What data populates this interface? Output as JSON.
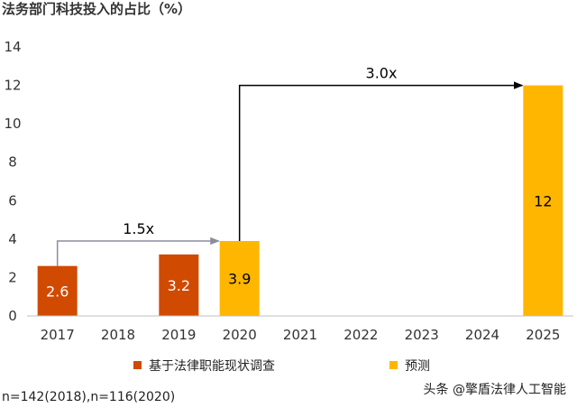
{
  "chart_data": {
    "type": "bar",
    "title": "法务部门科技投入的占比（%）",
    "categories": [
      "2017",
      "2018",
      "2019",
      "2020",
      "2021",
      "2022",
      "2023",
      "2024",
      "2025"
    ],
    "series": [
      {
        "name": "基于法律职能现状调查",
        "color": "#D04A02",
        "values": [
          2.6,
          null,
          3.2,
          null,
          null,
          null,
          null,
          null,
          null
        ]
      },
      {
        "name": "预测",
        "color": "#FFB600",
        "values": [
          null,
          null,
          null,
          3.9,
          null,
          null,
          null,
          null,
          12
        ]
      }
    ],
    "data_labels": [
      {
        "category": "2017",
        "text": "2.6",
        "color": "#ffffff"
      },
      {
        "category": "2019",
        "text": "3.2",
        "color": "#ffffff"
      },
      {
        "category": "2020",
        "text": "3.9",
        "color": "#000000"
      },
      {
        "category": "2025",
        "text": "12",
        "color": "#000000"
      }
    ],
    "annotations": [
      {
        "text": "1.5x",
        "from": "2017",
        "to": "2020",
        "from_value": 2.6,
        "to_value": 3.9
      },
      {
        "text": "3.0x",
        "from": "2020",
        "to": "2025",
        "from_value": 3.9,
        "to_value": 12
      }
    ],
    "yticks": [
      "0",
      "2",
      "4",
      "6",
      "8",
      "10",
      "12",
      "14"
    ],
    "ylim": [
      0,
      14
    ],
    "grid": false,
    "legend_position": "bottom"
  },
  "footnote": "n=142(2018),n=116(2020)",
  "watermark": "头条 @擎盾法律人工智能"
}
